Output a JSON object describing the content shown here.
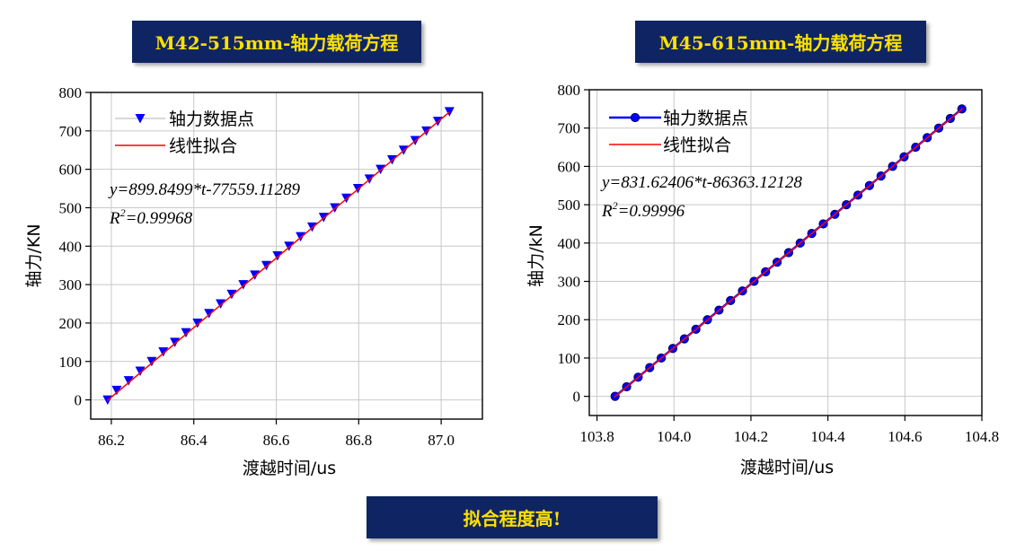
{
  "banners": {
    "left": "M42-515mm-轴力载荷方程",
    "right": "M45-615mm-轴力载荷方程",
    "bottom": "拟合程度高!"
  },
  "colors": {
    "banner_bg": "#0f2563",
    "banner_text": "#ffe100",
    "data_blue": "#0000ff",
    "fit_red": "#ff0000"
  },
  "chart_data": [
    {
      "type": "scatter",
      "title": "M42-515mm-轴力载荷方程",
      "xlabel": "渡越时间/us",
      "ylabel": "轴力/KN",
      "xlim": [
        86.15,
        87.1
      ],
      "ylim": [
        -50,
        800
      ],
      "xticks": [
        "86.2",
        "86.4",
        "86.6",
        "86.8",
        "87.0"
      ],
      "xtick_values": [
        86.2,
        86.4,
        86.6,
        86.8,
        87.0
      ],
      "yticks": [
        "0",
        "100",
        "200",
        "300",
        "400",
        "500",
        "600",
        "700",
        "800"
      ],
      "ytick_values": [
        0,
        100,
        200,
        300,
        400,
        500,
        600,
        700,
        800
      ],
      "grid": true,
      "legend_position": "top-left",
      "marker": "triangle-down",
      "series": [
        {
          "name": "轴力数据点",
          "x": [
            86.191,
            86.213,
            86.242,
            86.27,
            86.298,
            86.326,
            86.354,
            86.381,
            86.409,
            86.437,
            86.465,
            86.492,
            86.52,
            86.548,
            86.576,
            86.603,
            86.631,
            86.659,
            86.687,
            86.715,
            86.742,
            86.77,
            86.798,
            86.826,
            86.853,
            86.881,
            86.909,
            86.937,
            86.964,
            86.992,
            87.02
          ],
          "y": [
            0,
            25,
            50,
            75,
            100,
            125,
            150,
            175,
            200,
            225,
            250,
            275,
            300,
            325,
            350,
            375,
            400,
            425,
            450,
            475,
            500,
            525,
            550,
            575,
            600,
            625,
            650,
            675,
            700,
            725,
            750
          ]
        },
        {
          "name": "线性拟合",
          "x": [
            86.19,
            87.02
          ],
          "y": [
            -2,
            749
          ]
        }
      ],
      "annotations": [
        "y=899.8499*t-77559.11289",
        "R",
        "2",
        "=0.99968"
      ]
    },
    {
      "type": "line",
      "title": "M45-615mm-轴力载荷方程",
      "xlabel": "渡越时间/us",
      "ylabel": "轴力/kN",
      "xlim": [
        103.78,
        104.8
      ],
      "ylim": [
        -50,
        800
      ],
      "xticks": [
        "103.8",
        "104.0",
        "104.2",
        "104.4",
        "104.6",
        "104.8"
      ],
      "xtick_values": [
        103.8,
        104.0,
        104.2,
        104.4,
        104.6,
        104.8
      ],
      "yticks": [
        "0",
        "100",
        "200",
        "300",
        "400",
        "500",
        "600",
        "700",
        "800"
      ],
      "ytick_values": [
        0,
        100,
        200,
        300,
        400,
        500,
        600,
        700,
        800
      ],
      "grid": true,
      "legend_position": "top-left",
      "marker": "circle",
      "series": [
        {
          "name": "轴力数据点",
          "x": [
            103.847,
            103.877,
            103.907,
            103.937,
            103.967,
            103.997,
            104.027,
            104.057,
            104.087,
            104.117,
            104.147,
            104.178,
            104.208,
            104.238,
            104.268,
            104.298,
            104.328,
            104.358,
            104.388,
            104.418,
            104.448,
            104.478,
            104.508,
            104.538,
            104.568,
            104.598,
            104.628,
            104.658,
            104.688,
            104.718,
            104.748
          ],
          "y": [
            0,
            25,
            50,
            75,
            100,
            125,
            150,
            175,
            200,
            225,
            250,
            275,
            300,
            325,
            350,
            375,
            400,
            425,
            450,
            475,
            500,
            525,
            550,
            575,
            600,
            625,
            650,
            675,
            700,
            725,
            750
          ]
        },
        {
          "name": "线性拟合",
          "x": [
            103.845,
            104.75
          ],
          "y": [
            -2,
            751
          ]
        }
      ],
      "annotations": [
        "y=831.62406*t-86363.12128",
        "R",
        "2",
        "=0.99996"
      ]
    }
  ]
}
